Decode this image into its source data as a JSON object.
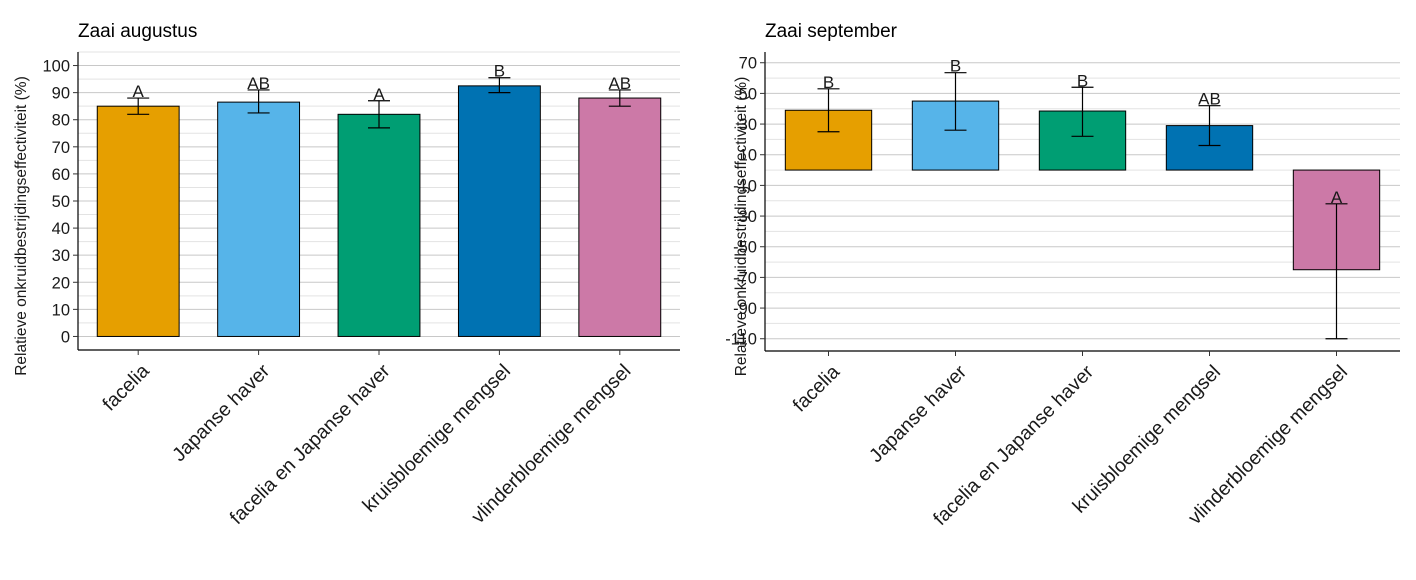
{
  "chart_data": [
    {
      "type": "bar",
      "title": "Zaai augustus",
      "ylabel": "Relatieve onkruidbestrijdingseffectiviteit (%)",
      "xlabel": "",
      "categories": [
        "facelia",
        "Japanse haver",
        "facelia en Japanse haver",
        "kruisbloemige mengsel",
        "vlinderbloemige mengsel"
      ],
      "values": [
        85,
        86.5,
        82,
        92.5,
        88
      ],
      "error_low": [
        82,
        82.5,
        77,
        90,
        85
      ],
      "error_high": [
        88,
        91,
        87,
        95.5,
        91
      ],
      "significance": [
        "A",
        "AB",
        "A",
        "B",
        "AB"
      ],
      "colors": [
        "#E69F00",
        "#56B4E9",
        "#009E73",
        "#0072B2",
        "#CC79A7"
      ],
      "ylim": [
        -5,
        105
      ],
      "yticks": [
        0,
        10,
        20,
        30,
        40,
        50,
        60,
        70,
        80,
        90,
        100
      ],
      "grid": true
    },
    {
      "type": "bar",
      "title": "Zaai september",
      "ylabel": "Relatieve onkruidbestrijdingseffectiviteit (%)",
      "xlabel": "",
      "categories": [
        "facelia",
        "Japanse haver",
        "facelia en Japanse haver",
        "kruisbloemige mengsel",
        "vlinderbloemige mengsel"
      ],
      "values": [
        39,
        45,
        38.5,
        29,
        -65
      ],
      "error_low": [
        25,
        26,
        22,
        16,
        -110
      ],
      "error_high": [
        53,
        63.5,
        54,
        42,
        -22
      ],
      "significance": [
        "B",
        "B",
        "B",
        "AB",
        "A"
      ],
      "colors": [
        "#E69F00",
        "#56B4E9",
        "#009E73",
        "#0072B2",
        "#CC79A7"
      ],
      "ylim": [
        -118,
        77
      ],
      "yticks": [
        70,
        50,
        30,
        10,
        -10,
        -30,
        -50,
        -70,
        -90,
        -110
      ],
      "grid": true
    }
  ]
}
